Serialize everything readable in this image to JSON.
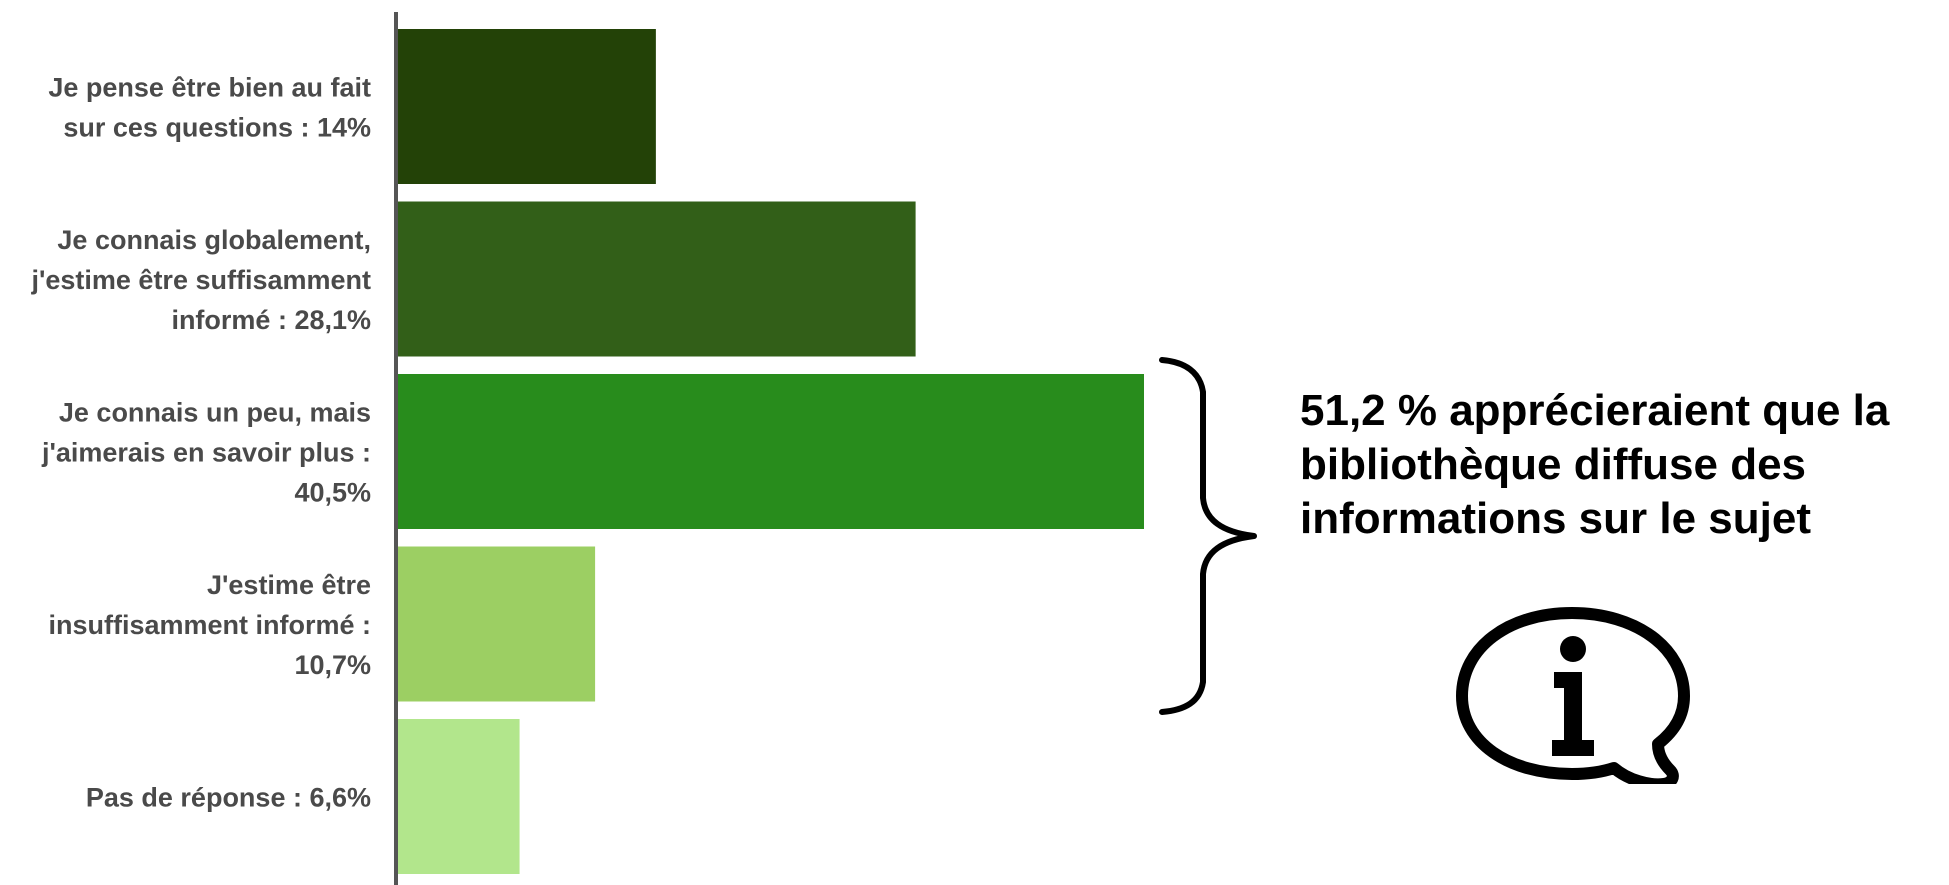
{
  "chart_data": {
    "type": "bar",
    "orientation": "horizontal",
    "categories": [
      [
        "Je pense être bien au fait",
        "sur ces questions : 14%"
      ],
      [
        "Je connais globalement,",
        "j'estime être suffisamment",
        "informé : 28,1%"
      ],
      [
        "Je connais un peu, mais",
        "j'aimerais en savoir plus :",
        "40,5%"
      ],
      [
        "J'estime être",
        "insuffisamment informé :",
        "10,7%"
      ],
      [
        "Pas de réponse : 6,6%"
      ]
    ],
    "values": [
      14,
      28.1,
      40.5,
      10.7,
      6.6
    ],
    "colors": [
      "#234207",
      "#325f18",
      "#288c1c",
      "#9ccf63",
      "#b2e68c"
    ],
    "xlim": [
      0,
      40.5
    ],
    "grid": false,
    "legend": "none",
    "annotation": {
      "text": "51,2 % apprécieraient que la bibliothèque diffuse des informations sur le sujet",
      "brace_spans_categories": [
        2,
        3
      ],
      "icon": "info-speech-bubble-icon"
    }
  }
}
